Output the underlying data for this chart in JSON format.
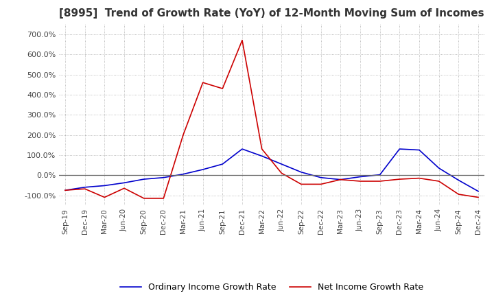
{
  "title": "[8995]  Trend of Growth Rate (YoY) of 12-Month Moving Sum of Incomes",
  "title_fontsize": 11,
  "ylim": [
    -150,
    750
  ],
  "yticks": [
    -100,
    0,
    100,
    200,
    300,
    400,
    500,
    600,
    700
  ],
  "ytick_labels": [
    "-100.0%",
    "0.0%",
    "100.0%",
    "200.0%",
    "300.0%",
    "400.0%",
    "500.0%",
    "600.0%",
    "700.0%"
  ],
  "x_labels": [
    "Sep-19",
    "Dec-19",
    "Mar-20",
    "Jun-20",
    "Sep-20",
    "Dec-20",
    "Mar-21",
    "Jun-21",
    "Sep-21",
    "Dec-21",
    "Mar-22",
    "Jun-22",
    "Sep-22",
    "Dec-22",
    "Mar-23",
    "Jun-23",
    "Sep-23",
    "Dec-23",
    "Mar-24",
    "Jun-24",
    "Sep-24",
    "Dec-24"
  ],
  "ordinary_income": [
    -75,
    -60,
    -52,
    -38,
    -20,
    -12,
    5,
    28,
    55,
    130,
    95,
    55,
    15,
    -12,
    -22,
    -8,
    2,
    130,
    125,
    35,
    -25,
    -80
  ],
  "net_income": [
    -75,
    -68,
    -110,
    -65,
    -115,
    -115,
    200,
    460,
    430,
    670,
    130,
    10,
    -45,
    -45,
    -22,
    -30,
    -30,
    -20,
    -15,
    -30,
    -95,
    -110
  ],
  "ordinary_color": "#0000cc",
  "net_color": "#cc0000",
  "line_width": 1.2,
  "legend_ordinary": "Ordinary Income Growth Rate",
  "legend_net": "Net Income Growth Rate",
  "background_color": "#ffffff",
  "grid_color": "#aaaaaa",
  "grid_linestyle": "dotted"
}
